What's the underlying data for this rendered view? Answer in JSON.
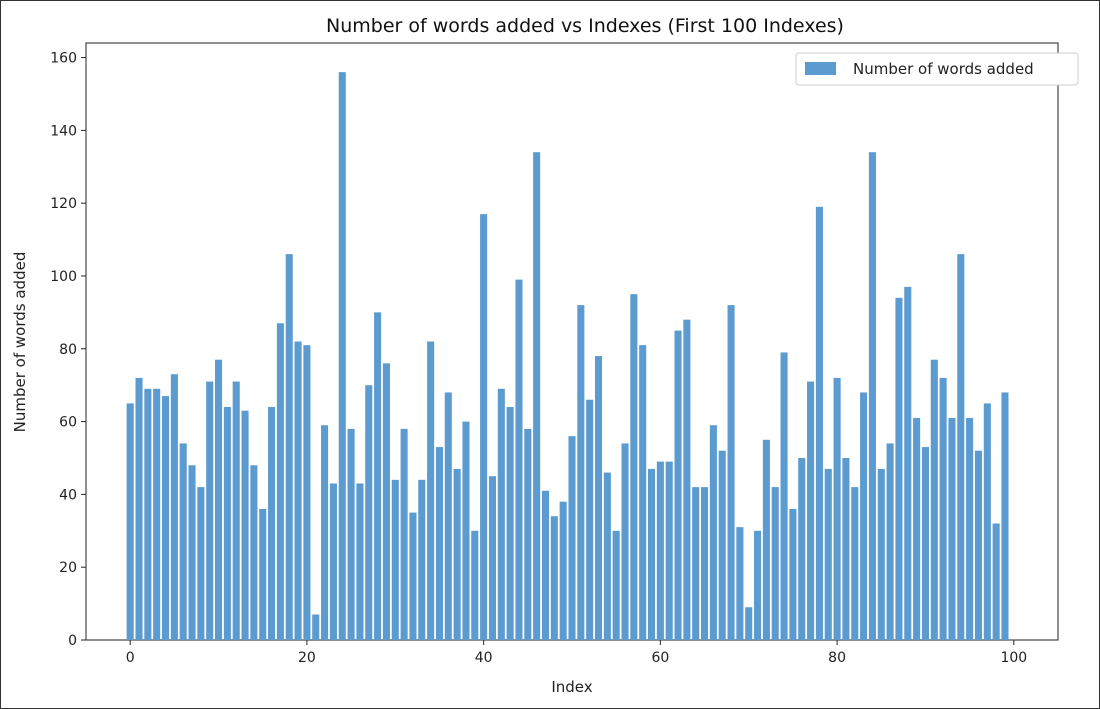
{
  "chart_data": {
    "type": "bar",
    "title": "Number of words added vs Indexes (First 100 Indexes)",
    "xlabel": "Index",
    "ylabel": "Number of words added",
    "xlim": [
      -5,
      105
    ],
    "ylim": [
      0,
      164
    ],
    "xticks": [
      0,
      20,
      40,
      60,
      80,
      100
    ],
    "yticks": [
      0,
      20,
      40,
      60,
      80,
      100,
      120,
      140,
      160
    ],
    "legend": {
      "label": "Number of words added",
      "placement": "top-right"
    },
    "bar_color": "#5b9bcf",
    "grid": false,
    "series": [
      {
        "name": "Number of words added",
        "x": [
          0,
          1,
          2,
          3,
          4,
          5,
          6,
          7,
          8,
          9,
          10,
          11,
          12,
          13,
          14,
          15,
          16,
          17,
          18,
          19,
          20,
          21,
          22,
          23,
          24,
          25,
          26,
          27,
          28,
          29,
          30,
          31,
          32,
          33,
          34,
          35,
          36,
          37,
          38,
          39,
          40,
          41,
          42,
          43,
          44,
          45,
          46,
          47,
          48,
          49,
          50,
          51,
          52,
          53,
          54,
          55,
          56,
          57,
          58,
          59,
          60,
          61,
          62,
          63,
          64,
          65,
          66,
          67,
          68,
          69,
          70,
          71,
          72,
          73,
          74,
          75,
          76,
          77,
          78,
          79,
          80,
          81,
          82,
          83,
          84,
          85,
          86,
          87,
          88,
          89,
          90,
          91,
          92,
          93,
          94,
          95,
          96,
          97,
          98,
          99
        ],
        "values": [
          65,
          72,
          69,
          69,
          67,
          73,
          54,
          48,
          42,
          71,
          77,
          64,
          71,
          63,
          48,
          36,
          64,
          87,
          106,
          82,
          81,
          7,
          59,
          43,
          156,
          58,
          43,
          70,
          90,
          76,
          44,
          58,
          35,
          44,
          82,
          53,
          68,
          47,
          60,
          30,
          117,
          45,
          69,
          64,
          99,
          58,
          134,
          41,
          34,
          38,
          56,
          92,
          66,
          78,
          46,
          30,
          54,
          95,
          81,
          47,
          49,
          49,
          85,
          88,
          42,
          42,
          59,
          52,
          92,
          31,
          9,
          30,
          55,
          42,
          79,
          36,
          50,
          71,
          119,
          47,
          72,
          50,
          42,
          68,
          134,
          47,
          54,
          94,
          97,
          61,
          53,
          77,
          72,
          61,
          106,
          61,
          52,
          65,
          32,
          68
        ]
      }
    ]
  }
}
